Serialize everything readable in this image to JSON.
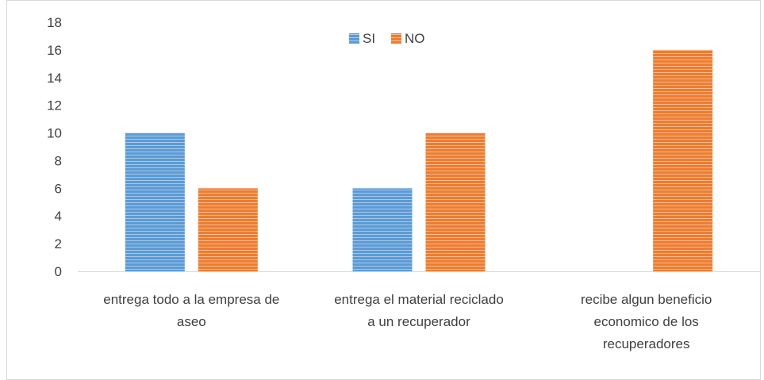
{
  "chart_data": {
    "type": "bar",
    "categories": [
      [
        "entrega todo a la empresa de",
        "aseo"
      ],
      [
        "entrega el material reciclado",
        "a un recuperador"
      ],
      [
        "recibe algun beneficio",
        "economico de los",
        "recuperadores"
      ]
    ],
    "series": [
      {
        "name": "SI",
        "values": [
          10,
          6,
          0
        ],
        "color": "#5b9bd5"
      },
      {
        "name": "NO",
        "values": [
          6,
          10,
          16
        ],
        "color": "#ed7d31"
      }
    ],
    "yticks": [
      "0",
      "2",
      "4",
      "6",
      "8",
      "10",
      "12",
      "14",
      "16",
      "18"
    ],
    "ylim": [
      0,
      18
    ],
    "grid": false,
    "legend_position": "top-center",
    "bar_pattern": "horizontal-stripes"
  }
}
